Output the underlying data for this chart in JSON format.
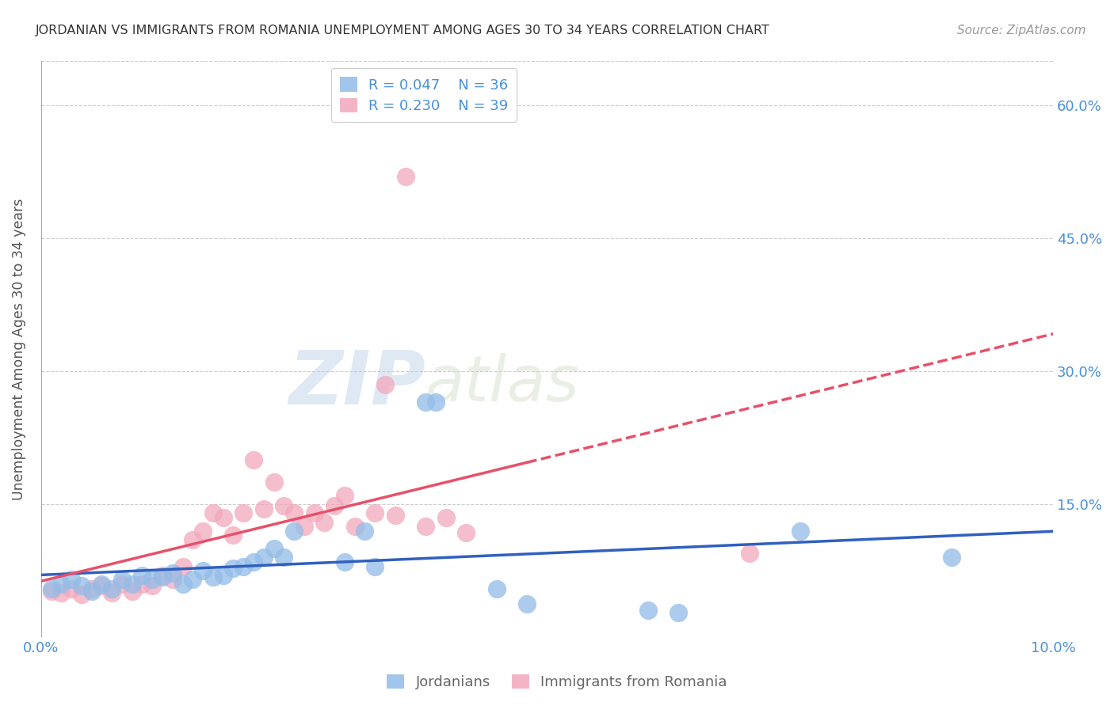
{
  "title": "JORDANIAN VS IMMIGRANTS FROM ROMANIA UNEMPLOYMENT AMONG AGES 30 TO 34 YEARS CORRELATION CHART",
  "source": "Source: ZipAtlas.com",
  "ylabel": "Unemployment Among Ages 30 to 34 years",
  "xlim": [
    0.0,
    0.1
  ],
  "ylim": [
    0.0,
    0.65
  ],
  "xticks": [
    0.0,
    0.02,
    0.04,
    0.06,
    0.08,
    0.1
  ],
  "yticks": [
    0.0,
    0.15,
    0.3,
    0.45,
    0.6
  ],
  "ytick_labels": [
    "",
    "15.0%",
    "30.0%",
    "45.0%",
    "60.0%"
  ],
  "xtick_labels": [
    "0.0%",
    "",
    "",
    "",
    "",
    "10.0%"
  ],
  "blue_color": "#92bce8",
  "pink_color": "#f2a8bc",
  "blue_line_color": "#3060bf",
  "pink_line_color": "#e8506a",
  "blue_R": 0.047,
  "blue_N": 36,
  "pink_R": 0.23,
  "pink_N": 39,
  "legend_label_blue": "Jordanians",
  "legend_label_pink": "Immigrants from Romania",
  "watermark_zip": "ZIP",
  "watermark_atlas": "atlas",
  "blue_scatter_x": [
    0.001,
    0.002,
    0.003,
    0.004,
    0.005,
    0.006,
    0.007,
    0.008,
    0.009,
    0.01,
    0.011,
    0.012,
    0.013,
    0.014,
    0.015,
    0.016,
    0.017,
    0.018,
    0.019,
    0.02,
    0.021,
    0.022,
    0.023,
    0.024,
    0.025,
    0.03,
    0.032,
    0.033,
    0.038,
    0.039,
    0.045,
    0.048,
    0.06,
    0.063,
    0.075,
    0.09
  ],
  "blue_scatter_y": [
    0.055,
    0.06,
    0.065,
    0.058,
    0.052,
    0.06,
    0.055,
    0.065,
    0.06,
    0.07,
    0.065,
    0.068,
    0.072,
    0.06,
    0.065,
    0.075,
    0.068,
    0.07,
    0.078,
    0.08,
    0.085,
    0.09,
    0.1,
    0.09,
    0.12,
    0.085,
    0.12,
    0.08,
    0.265,
    0.265,
    0.055,
    0.038,
    0.03,
    0.028,
    0.12,
    0.09
  ],
  "pink_scatter_x": [
    0.001,
    0.002,
    0.003,
    0.004,
    0.005,
    0.006,
    0.007,
    0.008,
    0.009,
    0.01,
    0.011,
    0.012,
    0.013,
    0.014,
    0.015,
    0.016,
    0.017,
    0.018,
    0.019,
    0.02,
    0.021,
    0.022,
    0.023,
    0.024,
    0.025,
    0.026,
    0.027,
    0.028,
    0.029,
    0.03,
    0.031,
    0.033,
    0.034,
    0.035,
    0.036,
    0.038,
    0.04,
    0.042,
    0.07
  ],
  "pink_scatter_y": [
    0.052,
    0.05,
    0.055,
    0.048,
    0.055,
    0.058,
    0.05,
    0.06,
    0.052,
    0.06,
    0.058,
    0.07,
    0.065,
    0.08,
    0.11,
    0.12,
    0.14,
    0.135,
    0.115,
    0.14,
    0.2,
    0.145,
    0.175,
    0.148,
    0.14,
    0.125,
    0.14,
    0.13,
    0.148,
    0.16,
    0.125,
    0.14,
    0.285,
    0.138,
    0.52,
    0.125,
    0.135,
    0.118,
    0.095
  ],
  "pink_line_solid_end": 0.048,
  "pink_line_dashed_end": 0.1
}
